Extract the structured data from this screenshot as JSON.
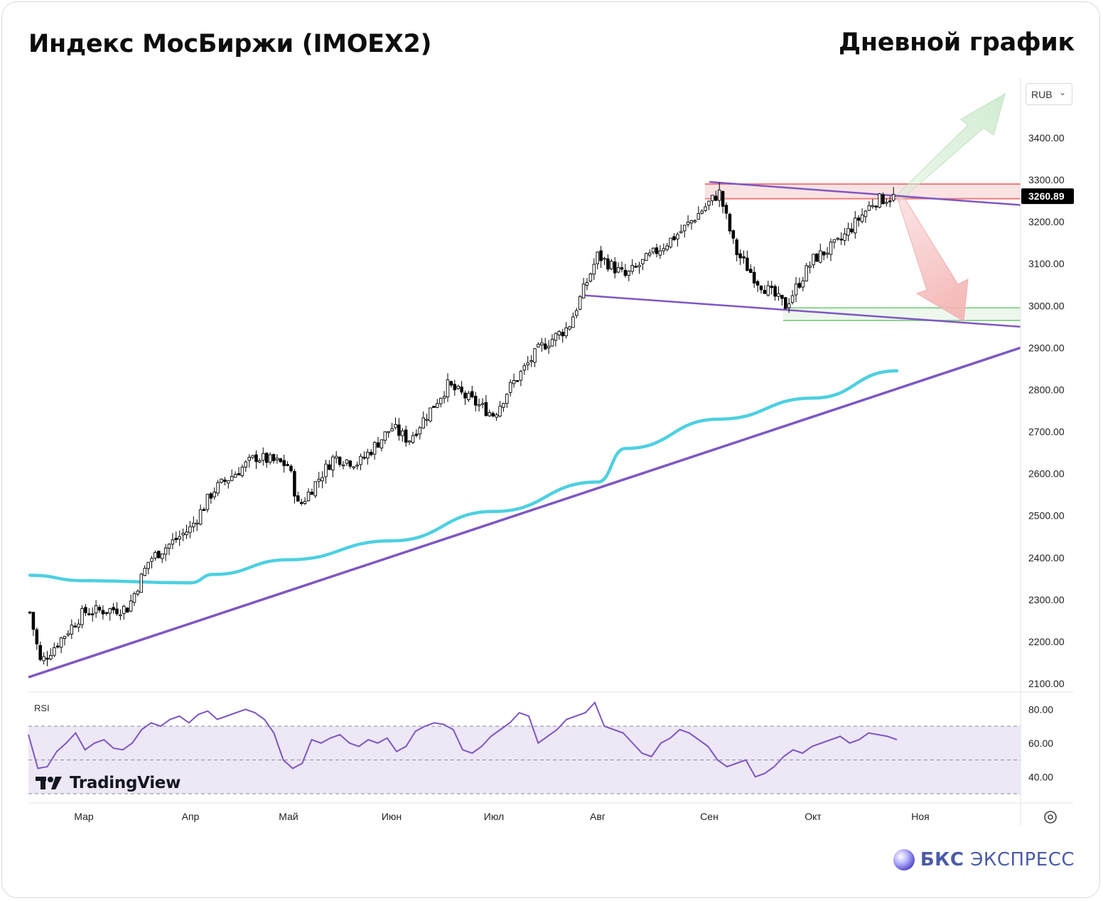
{
  "header": {
    "title": "Индекс МосБиржи (IMOEX2)",
    "timeframe": "Дневной график"
  },
  "toolbar": {
    "currency": "RUB"
  },
  "price_scale": {
    "ticks": [
      "3400.00",
      "3300.00",
      "3200.00",
      "3100.00",
      "3000.00",
      "2900.00",
      "2800.00",
      "2700.00",
      "2600.00",
      "2500.00",
      "2400.00",
      "2300.00",
      "2200.00",
      "2100.00"
    ],
    "last_price_label": "3260.89"
  },
  "rsi_panel": {
    "label": "RSI",
    "ticks": [
      "80.00",
      "60.00",
      "40.00"
    ],
    "upper_band": 70,
    "lower_band": 30,
    "mid_band": 50
  },
  "time_axis": {
    "labels": [
      "Мар",
      "Апр",
      "Май",
      "Июн",
      "Июл",
      "Авг",
      "Сен",
      "Окт",
      "Ноя"
    ]
  },
  "branding": {
    "tradingview": "TradingView",
    "bks_bold": "БКС",
    "bks_regular": "ЭКСПРЕСС"
  },
  "colors": {
    "candle_up": "#ffffff",
    "candle_down": "#000000",
    "moving_average": "#4dd0e1",
    "trendline": "#7e57c2",
    "resistance_zone": "#f28b8b",
    "support_zone": "#8fd18f",
    "rsi_line": "#7e57c2",
    "rsi_band_fill": "#ede7f6",
    "brand": "#4b5aa8"
  },
  "chart_data": {
    "type": "candlestick",
    "title": "Индекс МосБиржи (IMOEX2)",
    "timeframe": "Дневной график",
    "currency": "RUB",
    "ylim": [
      2080,
      3460
    ],
    "last_price": 3260.89,
    "months": [
      "Мар",
      "Апр",
      "Май",
      "Июн",
      "Июл",
      "Авг",
      "Сен",
      "Окт",
      "Ноя"
    ],
    "anchors": [
      {
        "label": "start",
        "close": 2270
      },
      {
        "label": "low",
        "close": 2150
      },
      {
        "label": "Мар",
        "close": 2270
      },
      {
        "label": "mid-Мар",
        "close": 2280
      },
      {
        "label": "late-Мар",
        "close": 2395
      },
      {
        "label": "Апр",
        "close": 2470
      },
      {
        "label": "mid-Апр",
        "close": 2560
      },
      {
        "label": "late-Апр",
        "close": 2640
      },
      {
        "label": "Май",
        "close": 2620
      },
      {
        "label": "early-Май",
        "close": 2520
      },
      {
        "label": "mid-Май",
        "close": 2640
      },
      {
        "label": "late-Май",
        "close": 2625
      },
      {
        "label": "Июн",
        "close": 2710
      },
      {
        "label": "mid-Июн",
        "close": 2680
      },
      {
        "label": "late-Июн",
        "close": 2810
      },
      {
        "label": "Июл",
        "close": 2740
      },
      {
        "label": "early-Июл",
        "close": 2800
      },
      {
        "label": "mid-Июл",
        "close": 2900
      },
      {
        "label": "late-Июл",
        "close": 2950
      },
      {
        "label": "Авг",
        "close": 3120
      },
      {
        "label": "mid-Авг",
        "close": 3070
      },
      {
        "label": "late-Авг",
        "close": 3180
      },
      {
        "label": "Сен",
        "close": 3270
      },
      {
        "label": "early-Сен",
        "close": 3130
      },
      {
        "label": "mid-Сен",
        "close": 3060
      },
      {
        "label": "late-Сен",
        "close": 3000
      },
      {
        "label": "Окт",
        "close": 3110
      },
      {
        "label": "mid-Окт",
        "close": 3150
      },
      {
        "label": "late-Окт",
        "close": 3250
      },
      {
        "label": "last",
        "close": 3260.89
      }
    ],
    "moving_average": [
      {
        "x": "start",
        "y": 2358
      },
      {
        "x": "Мар",
        "y": 2345
      },
      {
        "x": "Апр",
        "y": 2340
      },
      {
        "x": "mid-Апр",
        "y": 2360
      },
      {
        "x": "Май",
        "y": 2395
      },
      {
        "x": "Июн",
        "y": 2440
      },
      {
        "x": "Июл",
        "y": 2510
      },
      {
        "x": "Авг",
        "y": 2580
      },
      {
        "x": "mid-Авг",
        "y": 2660
      },
      {
        "x": "Сен",
        "y": 2730
      },
      {
        "x": "Окт",
        "y": 2780
      },
      {
        "x": "last",
        "y": 2845
      }
    ],
    "trendlines": [
      {
        "name": "uptrend",
        "from": {
          "x": "start",
          "y": 2115
        },
        "to": {
          "x": "end",
          "y": 2900
        }
      },
      {
        "name": "channel-top",
        "from": {
          "x": "Сен",
          "y": 3295
        },
        "to": {
          "x": "end",
          "y": 3240
        }
      },
      {
        "name": "channel-bottom",
        "from": {
          "x": "Авг",
          "y": 3025
        },
        "to": {
          "x": "end",
          "y": 2950
        }
      }
    ],
    "zones": [
      {
        "name": "resistance",
        "from": 3255,
        "to": 3290
      },
      {
        "name": "support",
        "from": 2965,
        "to": 2995
      }
    ],
    "scenarios": [
      {
        "direction": "up",
        "from": 3260,
        "to": 3440
      },
      {
        "direction": "down",
        "from": 3260,
        "to": 2975
      }
    ],
    "rsi": {
      "ylim": [
        28,
        88
      ],
      "bands": [
        70,
        50,
        30
      ],
      "values": [
        65,
        45,
        46,
        55,
        60,
        66,
        56,
        60,
        62,
        57,
        56,
        60,
        68,
        72,
        70,
        74,
        76,
        72,
        77,
        79,
        74,
        76,
        78,
        80,
        78,
        74,
        66,
        50,
        45,
        48,
        62,
        60,
        63,
        65,
        60,
        58,
        62,
        60,
        63,
        55,
        58,
        67,
        70,
        72,
        71,
        68,
        56,
        54,
        58,
        64,
        68,
        72,
        78,
        76,
        60,
        64,
        68,
        74,
        76,
        78,
        84,
        70,
        68,
        66,
        60,
        54,
        52,
        60,
        63,
        68,
        66,
        62,
        58,
        50,
        46,
        48,
        50,
        40,
        42,
        46,
        52,
        56,
        54,
        58,
        60,
        62,
        64,
        60,
        62,
        66,
        65,
        64,
        62
      ]
    }
  }
}
